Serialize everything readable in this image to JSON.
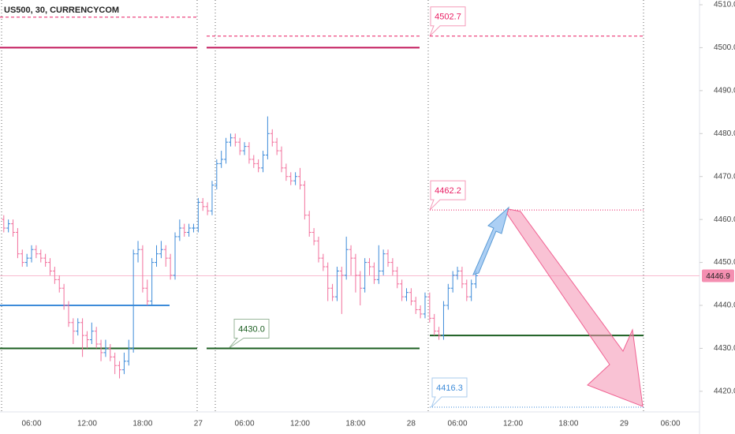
{
  "chart_data": {
    "type": "ohlc",
    "title": "US500, 30, CURRENCYCOM",
    "categories": [
      null,
      null,
      null,
      null,
      null,
      null,
      "06:00",
      null,
      null,
      null,
      null,
      null,
      null,
      null,
      null,
      null,
      null,
      null,
      "12:00",
      null,
      null,
      null,
      null,
      null,
      null,
      null,
      null,
      null,
      null,
      null,
      "18:00",
      null,
      null,
      null,
      null,
      null,
      null,
      null,
      null,
      null,
      null,
      null,
      "27",
      null,
      null,
      null,
      null,
      null,
      null,
      null,
      null,
      null,
      "06:00",
      null,
      null,
      null,
      null,
      null,
      null,
      null,
      null,
      null,
      null,
      null,
      "12:00",
      null,
      null,
      null,
      null,
      null,
      null,
      null,
      null,
      null,
      null,
      null,
      "18:00",
      null,
      null,
      null,
      null,
      null,
      null,
      null,
      null,
      null,
      null,
      null,
      "28",
      null,
      null,
      null,
      null,
      null,
      null,
      null,
      null,
      null,
      "06:00",
      null,
      null,
      null,
      null,
      null,
      null,
      null,
      null,
      null,
      null,
      null,
      "12:00",
      null,
      null,
      null,
      null,
      null,
      null,
      null,
      null,
      null,
      null,
      null,
      "18:00",
      null,
      null,
      null,
      null,
      null,
      null,
      null,
      null,
      null,
      null,
      null,
      "29",
      null,
      null,
      null,
      null,
      null,
      null,
      null,
      null,
      null,
      "06:00",
      null,
      null,
      null,
      null,
      null
    ],
    "open": [
      4460,
      4458,
      4459,
      4457,
      4452,
      4450,
      4451,
      4453,
      4452,
      4451,
      4450,
      4448,
      4446,
      4444,
      4440,
      4436,
      4434,
      4436,
      4433,
      4432,
      4434,
      4431,
      4429,
      4430,
      4428,
      4426,
      4425,
      4427,
      4430,
      4452,
      4453,
      4444,
      4441,
      4450,
      4452,
      4453,
      4451,
      4447,
      4456,
      4458,
      4457,
      4458,
      4458,
      4464,
      4463,
      4462,
      4468,
      4473,
      4474,
      4478,
      4479,
      4478,
      4476,
      4477,
      4474,
      4473,
      4472,
      4475,
      4480,
      4478,
      4476,
      4472,
      4470,
      4469,
      4470,
      4468,
      4461,
      4457,
      4455,
      4451,
      4449,
      4444,
      4442,
      4448,
      4447,
      4453,
      4451,
      4447,
      4444,
      4450,
      4449,
      4446,
      4448,
      4452,
      4450,
      4448,
      4445,
      4442,
      4443,
      4441,
      4439,
      4438,
      4442,
      4437,
      4434,
      4433,
      4440,
      4444,
      4447,
      4448,
      4445,
      4442,
      4445,
      null,
      null,
      null,
      null,
      null,
      null,
      null,
      null,
      null,
      null,
      null,
      null,
      null,
      null,
      null,
      null,
      null,
      null,
      null,
      null,
      null,
      null,
      null,
      null,
      null,
      null,
      null,
      null,
      null,
      null,
      null,
      null,
      null,
      null,
      null,
      null,
      null,
      null,
      null,
      null,
      null,
      null,
      null,
      null,
      null,
      null,
      null
    ],
    "high": [
      4461,
      4460,
      4460,
      4458,
      4453,
      4452,
      4454,
      4454,
      4453,
      4452,
      4451,
      4449,
      4447,
      4445,
      4441,
      4437,
      4437,
      4437,
      4434,
      4436,
      4435,
      4432,
      4432,
      4431,
      4429,
      4427,
      4429,
      4432,
      4453,
      4455,
      4454,
      4446,
      4451,
      4454,
      4455,
      4454,
      4452,
      4457,
      4460,
      4459,
      4459,
      4459,
      4465,
      4465,
      4464,
      4469,
      4474,
      4476,
      4479,
      4480,
      4480,
      4479,
      4478,
      4478,
      4475,
      4474,
      4476,
      4484,
      4481,
      4479,
      4477,
      4473,
      4471,
      4471,
      4472,
      4469,
      4462,
      4458,
      4456,
      4452,
      4450,
      4445,
      4449,
      4449,
      4456,
      4454,
      4452,
      4448,
      4451,
      4451,
      4450,
      4454,
      4453,
      4453,
      4451,
      4449,
      4446,
      4444,
      4444,
      4442,
      4440,
      4443,
      4443,
      4438,
      4435,
      4441,
      4445,
      4448,
      4449,
      4449,
      4446,
      4446,
      4448,
      null,
      null,
      null,
      null,
      null,
      null,
      null,
      null,
      null,
      null,
      null,
      null,
      null,
      null,
      null,
      null,
      null,
      null,
      null,
      null,
      null,
      null,
      null,
      null,
      null,
      null,
      null,
      null,
      null,
      null,
      null,
      null,
      null,
      null,
      null,
      null,
      null,
      null,
      null,
      null,
      null,
      null,
      null,
      null,
      null,
      null,
      null
    ],
    "low": [
      4457,
      4457,
      4456,
      4451,
      4449,
      4449,
      4450,
      4451,
      4450,
      4449,
      4447,
      4445,
      4443,
      4439,
      4435,
      4431,
      4433,
      4428,
      4430,
      4431,
      4430,
      4427,
      4428,
      4427,
      4424,
      4423,
      4424,
      4426,
      4429,
      4450,
      4443,
      4440,
      4440,
      4449,
      4451,
      4449,
      4446,
      4446,
      4455,
      4456,
      4456,
      4457,
      4457,
      4462,
      4461,
      4461,
      4467,
      4472,
      4473,
      4477,
      4477,
      4475,
      4475,
      4473,
      4472,
      4471,
      4471,
      4474,
      4477,
      4475,
      4471,
      4469,
      4468,
      4468,
      4467,
      4460,
      4456,
      4454,
      4450,
      4448,
      4441,
      4441,
      4441,
      4438,
      4446,
      4447,
      4443,
      4440,
      4443,
      4447,
      4445,
      4445,
      4447,
      4449,
      4447,
      4444,
      4441,
      4441,
      4440,
      4438,
      4437,
      4437,
      4436,
      4433,
      4432,
      4432,
      4439,
      4443,
      4446,
      4444,
      4441,
      4441,
      4444,
      null,
      null,
      null,
      null,
      null,
      null,
      null,
      null,
      null,
      null,
      null,
      null,
      null,
      null,
      null,
      null,
      null,
      null,
      null,
      null,
      null,
      null,
      null,
      null,
      null,
      null,
      null,
      null,
      null,
      null,
      null,
      null,
      null,
      null,
      null,
      null,
      null,
      null,
      null,
      null,
      null,
      null,
      null,
      null,
      null,
      null,
      null
    ],
    "close": [
      4458,
      4459,
      4457,
      4452,
      4450,
      4451,
      4453,
      4452,
      4451,
      4450,
      4448,
      4446,
      4444,
      4440,
      4436,
      4434,
      4436,
      4433,
      4432,
      4434,
      4431,
      4429,
      4430,
      4428,
      4426,
      4425,
      4427,
      4430,
      4452,
      4453,
      4444,
      4441,
      4450,
      4452,
      4453,
      4451,
      4447,
      4456,
      4458,
      4457,
      4458,
      4458,
      4464,
      4463,
      4462,
      4468,
      4473,
      4474,
      4478,
      4479,
      4478,
      4476,
      4477,
      4474,
      4473,
      4472,
      4475,
      4480,
      4478,
      4476,
      4472,
      4470,
      4469,
      4470,
      4468,
      4461,
      4457,
      4455,
      4451,
      4449,
      4444,
      4442,
      4448,
      4447,
      4453,
      4451,
      4447,
      4444,
      4450,
      4449,
      4446,
      4448,
      4452,
      4450,
      4448,
      4445,
      4442,
      4443,
      4441,
      4439,
      4438,
      4442,
      4437,
      4434,
      4433,
      4440,
      4444,
      4447,
      4448,
      4445,
      4442,
      4445,
      4446.9,
      null,
      null,
      null,
      null,
      null,
      null,
      null,
      null,
      null,
      null,
      null,
      null,
      null,
      null,
      null,
      null,
      null,
      null,
      null,
      null,
      null,
      null,
      null,
      null,
      null,
      null,
      null,
      null,
      null,
      null,
      null,
      null,
      null,
      null,
      null,
      null,
      null,
      null,
      null,
      null,
      null,
      null,
      null,
      null,
      null,
      null,
      null
    ],
    "up_color": "#3d8bd9",
    "down_color": "#f2709c",
    "ylim": [
      4415.2,
      4511.1
    ],
    "yticks": [
      {
        "value": 4420,
        "label": "4420.0"
      },
      {
        "value": 4430,
        "label": "4430.0"
      },
      {
        "value": 4440,
        "label": "4440.0"
      },
      {
        "value": 4450,
        "label": "4450.0"
      },
      {
        "value": 4460,
        "label": "4460.0"
      },
      {
        "value": 4470,
        "label": "4470.0"
      },
      {
        "value": 4480,
        "label": "4480.0"
      },
      {
        "value": 4490,
        "label": "4490.0"
      },
      {
        "value": 4500,
        "label": "4500.0"
      },
      {
        "value": 4510,
        "label": "4510.0"
      }
    ],
    "last_price": {
      "value": 4446.9,
      "label": "4446.9",
      "color": "#f8bbd0"
    },
    "levels": [
      {
        "value": 4507.1,
        "color": "#e91e63",
        "style": "dashed"
      },
      {
        "value": 4500,
        "color": "#c2185b",
        "style": "solid"
      },
      {
        "value": 4502.7,
        "label": "4502.7",
        "color": "#e91e63",
        "style": "dashed"
      },
      {
        "value": 4440,
        "color": "#3d8bd9",
        "style": "solid"
      },
      {
        "value": 4430,
        "label": "4430.0",
        "color": "#1b5e20",
        "style": "solid"
      },
      {
        "value": 4462.2,
        "label": "4462.2",
        "color": "#e91e63",
        "style": "dotted"
      },
      {
        "value": 4416.3,
        "label": "4416.3",
        "color": "#3d8bd9",
        "style": "dotted"
      },
      {
        "value": 4433,
        "color": "#1b5e20",
        "style": "solid"
      }
    ]
  }
}
